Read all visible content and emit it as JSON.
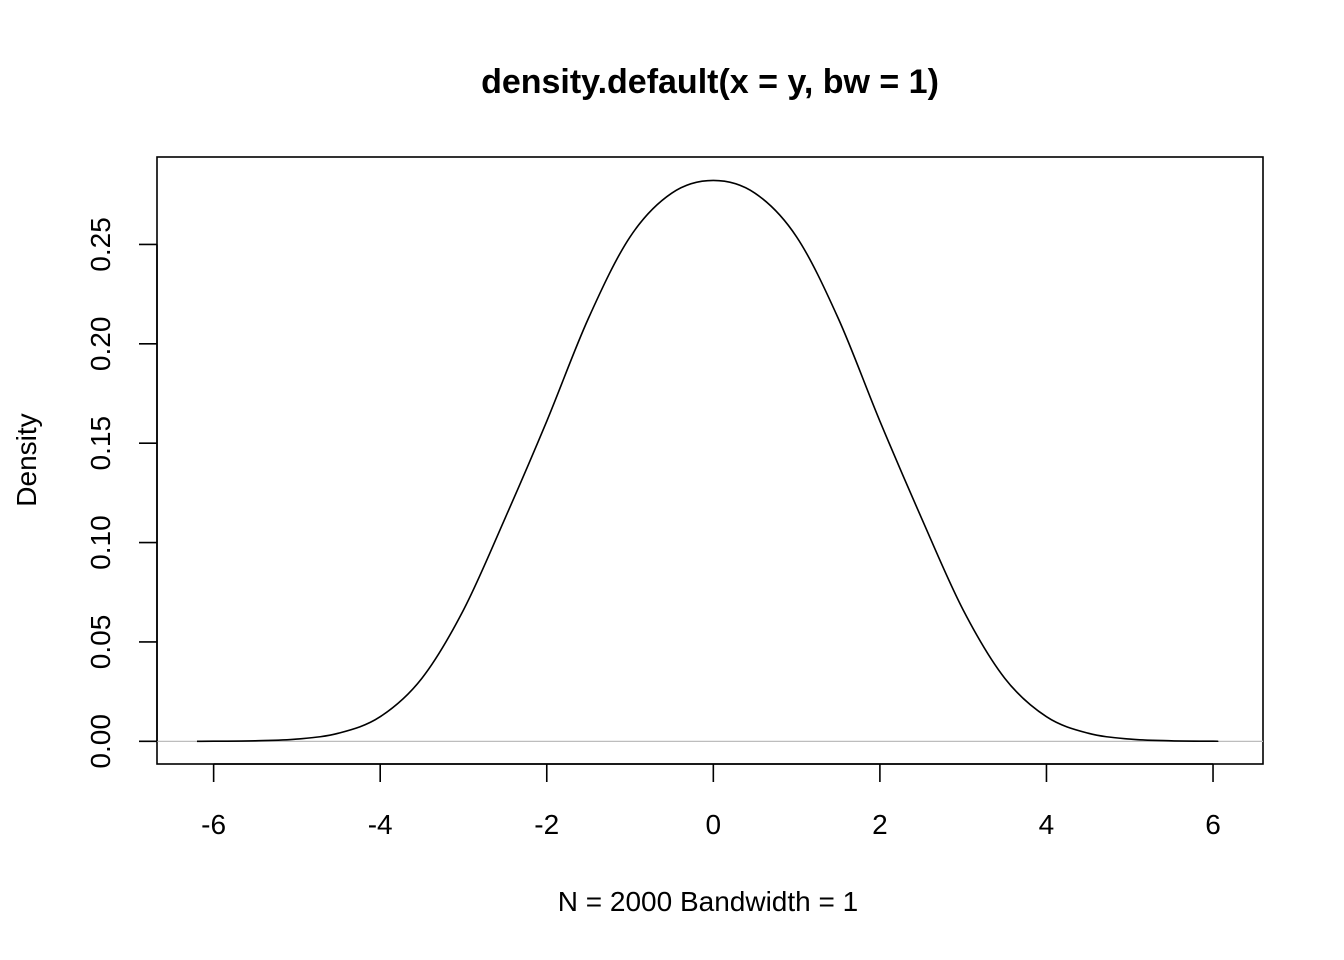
{
  "chart_data": {
    "type": "line",
    "title": "density.default(x = y, bw = 1)",
    "xlabel": "N = 2000   Bandwidth = 1",
    "ylabel": "Density",
    "xlim": [
      -6.68,
      6.6
    ],
    "ylim": [
      -0.0114,
      0.294
    ],
    "x_ticks": [
      -6,
      -4,
      -2,
      0,
      2,
      4,
      6
    ],
    "x_tick_labels": [
      "-6",
      "-4",
      "-2",
      "0",
      "2",
      "4",
      "6"
    ],
    "y_ticks": [
      0.0,
      0.05,
      0.1,
      0.15,
      0.2,
      0.25
    ],
    "y_tick_labels": [
      "0.00",
      "0.05",
      "0.10",
      "0.15",
      "0.20",
      "0.25"
    ],
    "grid": false,
    "baseline_y": 0,
    "series": [
      {
        "x": [
          -6.2,
          -6,
          -5.5,
          -5,
          -4.5,
          -4,
          -3.5,
          -3,
          -2.5,
          -2,
          -1.5,
          -1,
          -0.5,
          0,
          0.5,
          1,
          1.5,
          2,
          2.5,
          3,
          3.5,
          4,
          4.5,
          5,
          5.5,
          6,
          6.05
        ],
        "y": [
          3e-05,
          6e-05,
          0.00028,
          0.00114,
          0.0041,
          0.0124,
          0.0317,
          0.0661,
          0.1123,
          0.1611,
          0.2128,
          0.2538,
          0.2758,
          0.2822,
          0.2758,
          0.2538,
          0.2128,
          0.1611,
          0.1123,
          0.0661,
          0.0317,
          0.0124,
          0.0041,
          0.00114,
          0.00028,
          6e-05,
          5e-05
        ]
      }
    ]
  }
}
